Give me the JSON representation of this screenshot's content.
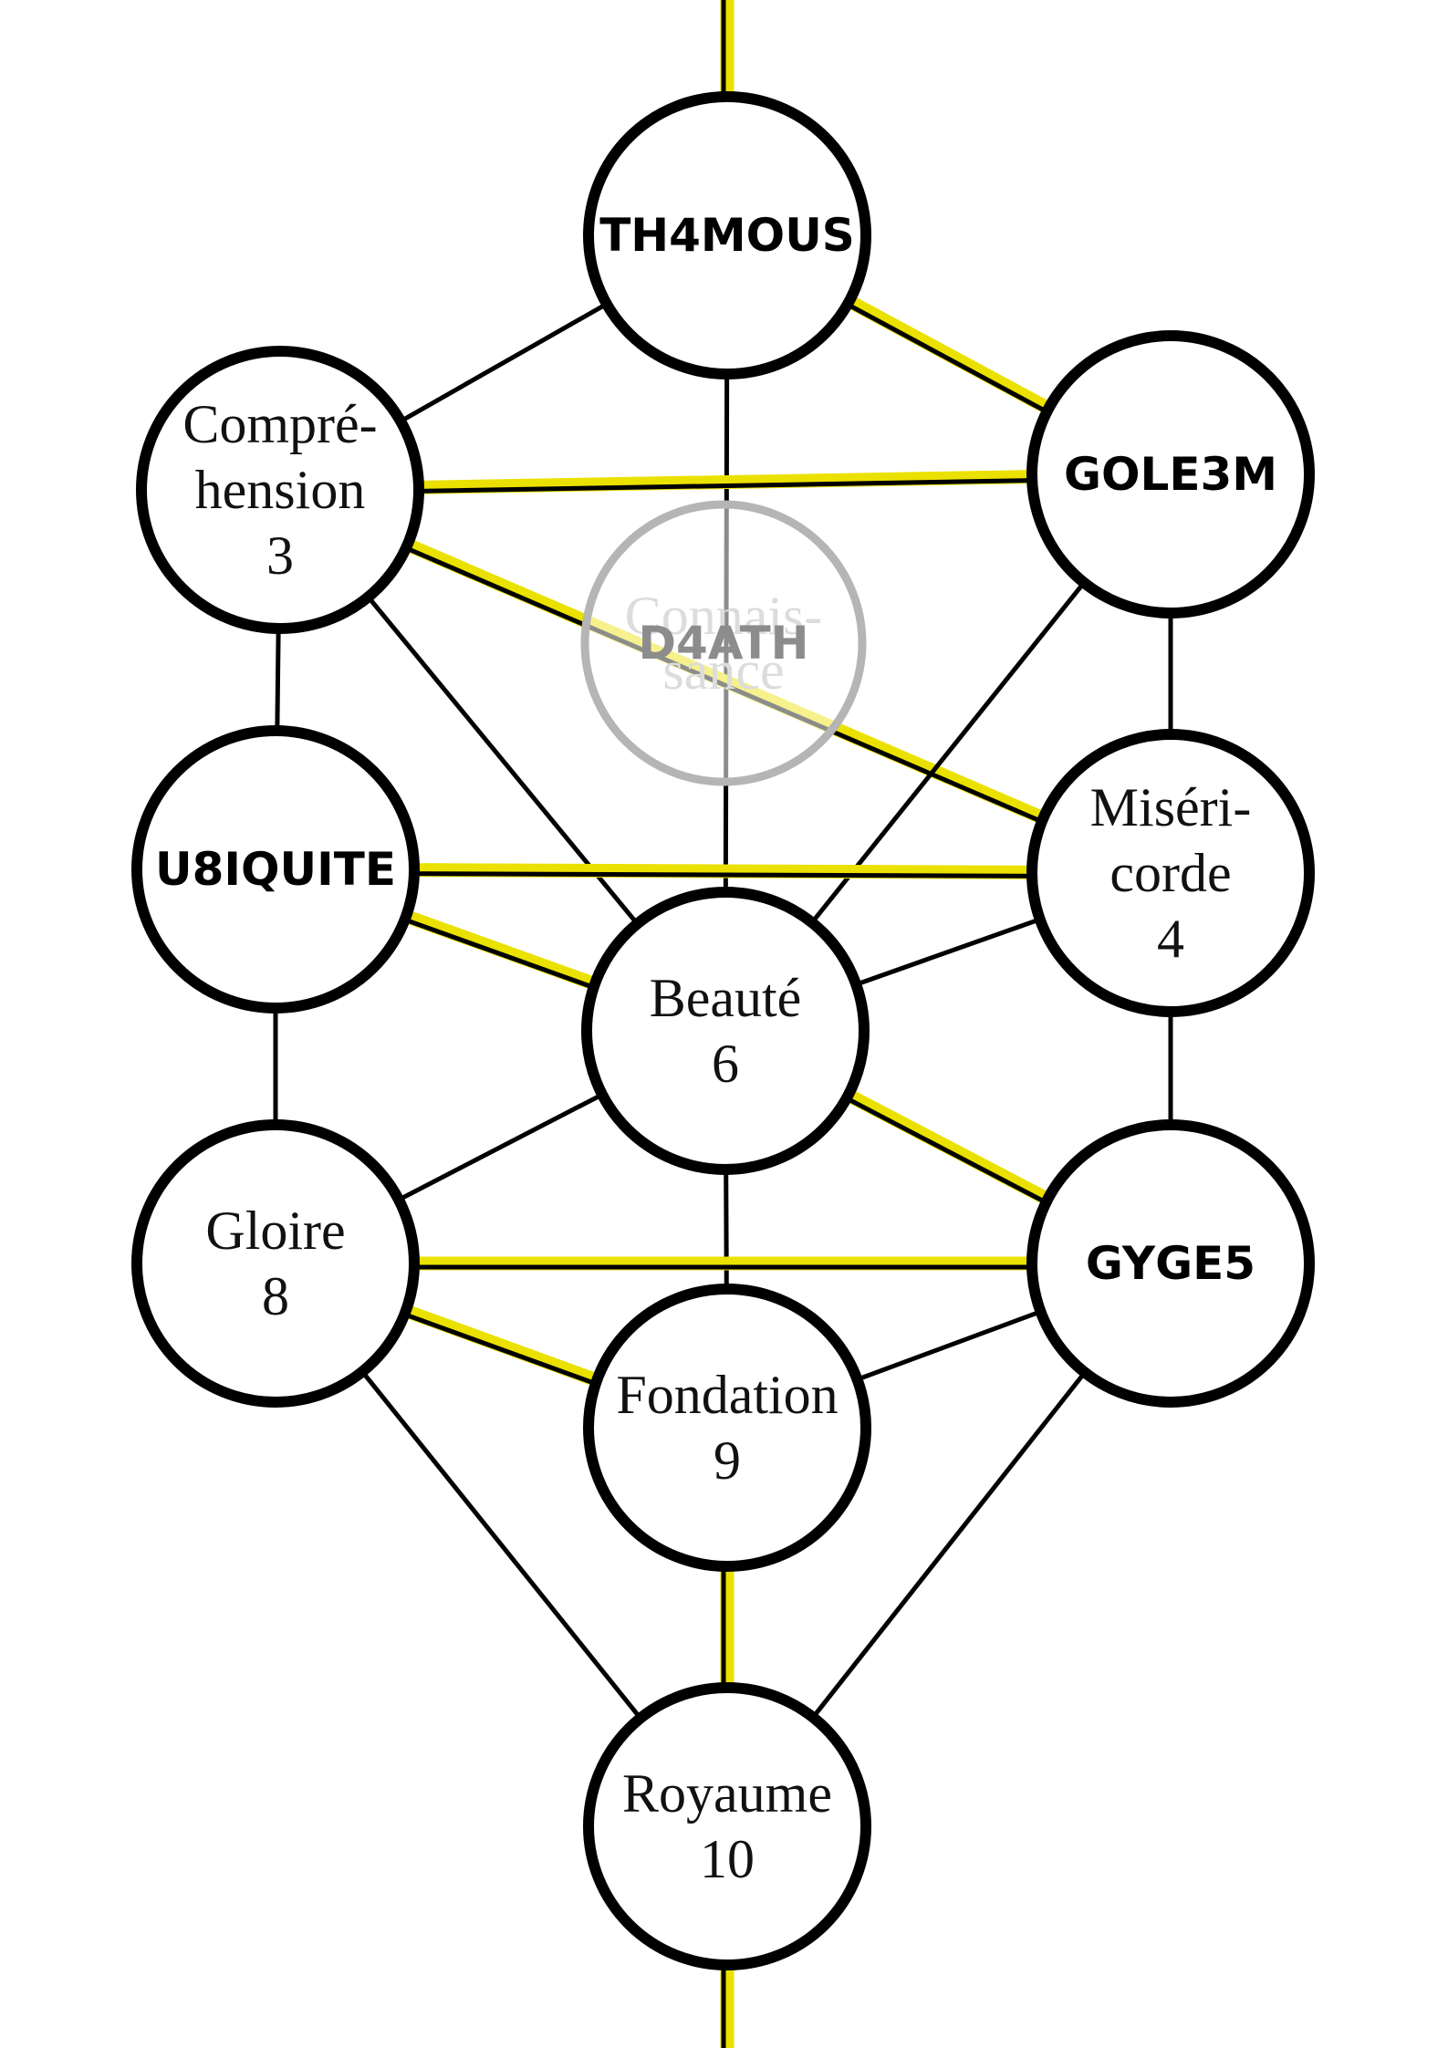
{
  "colors": {
    "highlight": "#ebe100",
    "edge": "#000000",
    "node_stroke": "#000000",
    "ghost_stroke": "#b5b5b5",
    "node_fill": "#ffffff"
  },
  "nodes": [
    {
      "id": "n1",
      "lines": [
        "TH4MOUS"
      ],
      "style": "bold"
    },
    {
      "id": "n2",
      "lines": [
        "GOLE3M"
      ],
      "style": "bold"
    },
    {
      "id": "n3",
      "lines": [
        "Compré-",
        "hension",
        "3"
      ],
      "style": "serif"
    },
    {
      "id": "daath",
      "lines": [
        "D4ATH"
      ],
      "underlay": [
        "Connais-",
        "sance"
      ],
      "style": "ghost"
    },
    {
      "id": "n4",
      "lines": [
        "Miséri-",
        "corde",
        "4"
      ],
      "style": "serif"
    },
    {
      "id": "n5",
      "lines": [
        "U8IQUITE"
      ],
      "style": "bold"
    },
    {
      "id": "n6",
      "lines": [
        "Beauté",
        "6"
      ],
      "style": "serif"
    },
    {
      "id": "n7",
      "lines": [
        "GYGE5"
      ],
      "style": "bold"
    },
    {
      "id": "n8",
      "lines": [
        "Gloire",
        "8"
      ],
      "style": "serif"
    },
    {
      "id": "n9",
      "lines": [
        "Fondation",
        "9"
      ],
      "style": "serif"
    },
    {
      "id": "n10",
      "lines": [
        "Royaume",
        "10"
      ],
      "style": "serif"
    }
  ],
  "edges": [
    {
      "from": "top",
      "to": "n1",
      "highlight": true
    },
    {
      "from": "n1",
      "to": "n3",
      "highlight": false
    },
    {
      "from": "n1",
      "to": "n2",
      "highlight": true
    },
    {
      "from": "n1",
      "to": "n6",
      "highlight": false
    },
    {
      "from": "n3",
      "to": "n2",
      "highlight": true
    },
    {
      "from": "n3",
      "to": "n4",
      "highlight": true
    },
    {
      "from": "n3",
      "to": "n5",
      "highlight": false
    },
    {
      "from": "n3",
      "to": "n6",
      "highlight": false
    },
    {
      "from": "n2",
      "to": "n4",
      "highlight": false
    },
    {
      "from": "n2",
      "to": "n6",
      "highlight": false
    },
    {
      "from": "n5",
      "to": "n4",
      "highlight": true
    },
    {
      "from": "n5",
      "to": "n6",
      "highlight": true
    },
    {
      "from": "n5",
      "to": "n8",
      "highlight": false
    },
    {
      "from": "n4",
      "to": "n6",
      "highlight": false
    },
    {
      "from": "n4",
      "to": "n7",
      "highlight": false
    },
    {
      "from": "n6",
      "to": "n8",
      "highlight": false
    },
    {
      "from": "n6",
      "to": "n7",
      "highlight": true
    },
    {
      "from": "n6",
      "to": "n9",
      "highlight": false
    },
    {
      "from": "n8",
      "to": "n7",
      "highlight": true
    },
    {
      "from": "n8",
      "to": "n9",
      "highlight": true
    },
    {
      "from": "n8",
      "to": "n10",
      "highlight": false
    },
    {
      "from": "n7",
      "to": "n9",
      "highlight": false
    },
    {
      "from": "n7",
      "to": "n10",
      "highlight": false
    },
    {
      "from": "n9",
      "to": "n10",
      "highlight": true
    },
    {
      "from": "n10",
      "to": "bottom",
      "highlight": true
    }
  ]
}
